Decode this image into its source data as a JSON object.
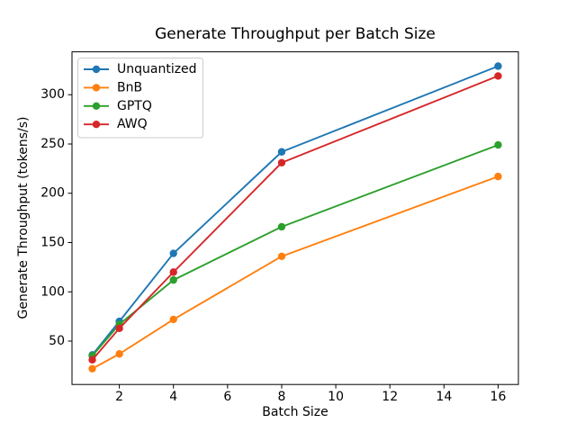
{
  "chart_data": {
    "type": "line",
    "title": "Generate Throughput per Batch Size",
    "xlabel": "Batch Size",
    "ylabel": "Generate Throughput (tokens/s)",
    "x": [
      1,
      2,
      4,
      8,
      16
    ],
    "series": [
      {
        "name": "Unquantized",
        "color": "#1f77b4",
        "values": [
          36,
          70,
          139,
          242,
          329
        ]
      },
      {
        "name": "BnB",
        "color": "#ff7f0e",
        "values": [
          22,
          37,
          72,
          136,
          217
        ]
      },
      {
        "name": "GPTQ",
        "color": "#2ca02c",
        "values": [
          35,
          67,
          112,
          166,
          249
        ]
      },
      {
        "name": "AWQ",
        "color": "#d62728",
        "values": [
          31,
          63,
          120,
          231,
          319
        ]
      }
    ],
    "xticks": [
      2,
      4,
      6,
      8,
      10,
      12,
      14,
      16
    ],
    "yticks": [
      50,
      100,
      150,
      200,
      250,
      300
    ],
    "xlim": [
      0.25,
      16.75
    ],
    "ylim": [
      6,
      343.5
    ],
    "grid": false,
    "marker": "circle",
    "legend": {
      "position": "upper-left",
      "entries": [
        "Unquantized",
        "BnB",
        "GPTQ",
        "AWQ"
      ]
    },
    "colors": {
      "text": "#000000",
      "spine": "#000000",
      "legend_border": "#cccccc",
      "legend_bg": "#ffffff"
    }
  }
}
